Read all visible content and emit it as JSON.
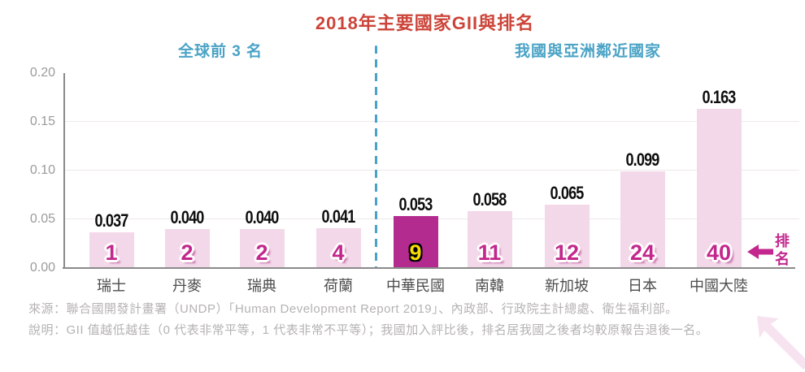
{
  "title": "2018年主要國家GII與排名",
  "sections": {
    "left": "全球前 3 名",
    "right": "我國與亞洲鄰近國家"
  },
  "chart_data": {
    "type": "bar",
    "title": "2018年主要國家GII與排名",
    "group_labels": [
      "全球前 3 名",
      "我國與亞洲鄰近國家"
    ],
    "categories": [
      "瑞士",
      "丹麥",
      "瑞典",
      "荷蘭",
      "中華民國",
      "南韓",
      "新加坡",
      "日本",
      "中國大陸"
    ],
    "values": [
      0.037,
      0.04,
      0.04,
      0.041,
      0.053,
      0.058,
      0.065,
      0.099,
      0.163
    ],
    "value_labels": [
      "0.037",
      "0.040",
      "0.040",
      "0.041",
      "0.053",
      "0.058",
      "0.065",
      "0.099",
      "0.163"
    ],
    "ranks": [
      "1",
      "2",
      "2",
      "4",
      "9",
      "11",
      "12",
      "24",
      "40"
    ],
    "groups": [
      0,
      0,
      0,
      0,
      1,
      1,
      1,
      1,
      1
    ],
    "highlight_index": 4,
    "highlight_category": "中華民國",
    "ylim": [
      0,
      0.2
    ],
    "yticks": [
      0,
      0.05,
      0.1,
      0.15,
      0.2
    ],
    "ytick_labels": [
      "0.00",
      "0.05",
      "0.10",
      "0.15",
      "0.20"
    ],
    "grid": true,
    "legend": null,
    "annotation": "排名"
  },
  "rank_pointer": {
    "label": "排名",
    "chars": [
      "排",
      "名"
    ]
  },
  "footer": {
    "source": "來源：聯合國開發計畫署（UNDP）「Human Development Report 2019」、內政部、行政院主計總處、衛生福利部。",
    "note": "說明：GII 值越低越佳（0 代表非常平等，1 代表非常不平等）；我國加入評比後，排名居我國之後者均較原報告退後一名。"
  },
  "colors": {
    "title_red": "#cc4439",
    "section_blue": "#4aa3c6",
    "bar_pink": "#f3d8e9",
    "bar_highlight_magenta": "#b42b90",
    "rank_magenta": "#c3278d",
    "rank_highlight_yellow": "#f6dc00",
    "axis_gray": "#8a8a8a",
    "tick_gray": "#9b9b9b",
    "category_gray": "#4c4c4c",
    "footer_gray": "#b5b2b2",
    "gridline": "#eee8ec",
    "corner_arrow_pink": "#f7e3f0"
  }
}
